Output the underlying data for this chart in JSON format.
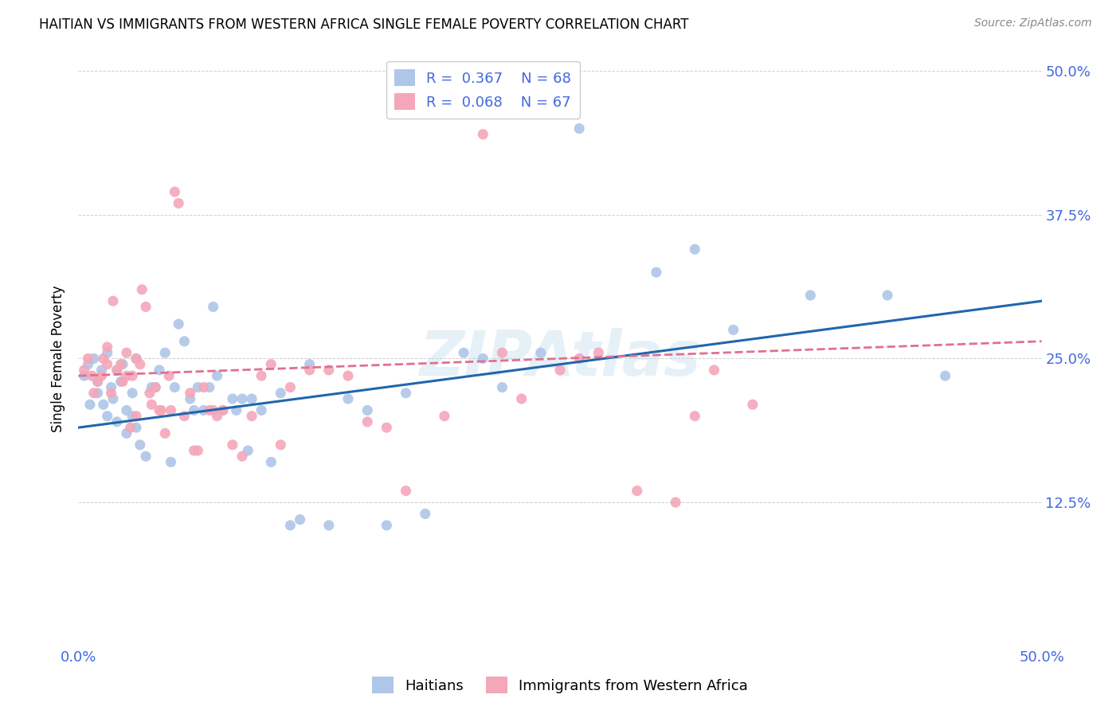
{
  "title": "HAITIAN VS IMMIGRANTS FROM WESTERN AFRICA SINGLE FEMALE POVERTY CORRELATION CHART",
  "source": "Source: ZipAtlas.com",
  "ylabel": "Single Female Poverty",
  "xlim": [
    0,
    0.5
  ],
  "ylim": [
    0,
    0.5
  ],
  "legend_label1": "Haitians",
  "legend_label2": "Immigrants from Western Africa",
  "color_blue": "#aec6e8",
  "color_pink": "#f4a7b9",
  "line_blue": "#2166ac",
  "line_pink": "#e07090",
  "watermark": "ZIPAtlas",
  "title_fontsize": 12,
  "axis_color": "#4169e1",
  "blue_scatter_x": [
    0.003,
    0.005,
    0.006,
    0.008,
    0.01,
    0.01,
    0.012,
    0.013,
    0.015,
    0.015,
    0.017,
    0.018,
    0.02,
    0.02,
    0.022,
    0.023,
    0.025,
    0.025,
    0.028,
    0.028,
    0.03,
    0.03,
    0.032,
    0.035,
    0.038,
    0.04,
    0.042,
    0.045,
    0.048,
    0.05,
    0.052,
    0.055,
    0.058,
    0.06,
    0.062,
    0.065,
    0.068,
    0.07,
    0.072,
    0.075,
    0.08,
    0.082,
    0.085,
    0.088,
    0.09,
    0.095,
    0.1,
    0.105,
    0.11,
    0.115,
    0.12,
    0.13,
    0.14,
    0.15,
    0.16,
    0.17,
    0.18,
    0.2,
    0.21,
    0.22,
    0.24,
    0.26,
    0.3,
    0.32,
    0.34,
    0.38,
    0.42,
    0.45
  ],
  "blue_scatter_y": [
    0.235,
    0.245,
    0.21,
    0.25,
    0.22,
    0.23,
    0.24,
    0.21,
    0.255,
    0.2,
    0.225,
    0.215,
    0.195,
    0.24,
    0.23,
    0.245,
    0.185,
    0.205,
    0.22,
    0.2,
    0.19,
    0.25,
    0.175,
    0.165,
    0.225,
    0.225,
    0.24,
    0.255,
    0.16,
    0.225,
    0.28,
    0.265,
    0.215,
    0.205,
    0.225,
    0.205,
    0.225,
    0.295,
    0.235,
    0.205,
    0.215,
    0.205,
    0.215,
    0.17,
    0.215,
    0.205,
    0.16,
    0.22,
    0.105,
    0.11,
    0.245,
    0.105,
    0.215,
    0.205,
    0.105,
    0.22,
    0.115,
    0.255,
    0.25,
    0.225,
    0.255,
    0.45,
    0.325,
    0.345,
    0.275,
    0.305,
    0.305,
    0.235
  ],
  "pink_scatter_x": [
    0.003,
    0.005,
    0.007,
    0.008,
    0.01,
    0.012,
    0.013,
    0.015,
    0.015,
    0.017,
    0.018,
    0.02,
    0.022,
    0.023,
    0.025,
    0.025,
    0.027,
    0.028,
    0.03,
    0.03,
    0.032,
    0.033,
    0.035,
    0.037,
    0.038,
    0.04,
    0.042,
    0.043,
    0.045,
    0.047,
    0.048,
    0.05,
    0.052,
    0.055,
    0.058,
    0.06,
    0.062,
    0.065,
    0.068,
    0.07,
    0.072,
    0.075,
    0.08,
    0.085,
    0.09,
    0.095,
    0.1,
    0.105,
    0.11,
    0.12,
    0.13,
    0.14,
    0.15,
    0.16,
    0.17,
    0.19,
    0.21,
    0.22,
    0.23,
    0.25,
    0.26,
    0.27,
    0.29,
    0.31,
    0.32,
    0.33,
    0.35
  ],
  "pink_scatter_y": [
    0.24,
    0.25,
    0.235,
    0.22,
    0.23,
    0.235,
    0.25,
    0.245,
    0.26,
    0.22,
    0.3,
    0.24,
    0.245,
    0.23,
    0.235,
    0.255,
    0.19,
    0.235,
    0.25,
    0.2,
    0.245,
    0.31,
    0.295,
    0.22,
    0.21,
    0.225,
    0.205,
    0.205,
    0.185,
    0.235,
    0.205,
    0.395,
    0.385,
    0.2,
    0.22,
    0.17,
    0.17,
    0.225,
    0.205,
    0.205,
    0.2,
    0.205,
    0.175,
    0.165,
    0.2,
    0.235,
    0.245,
    0.175,
    0.225,
    0.24,
    0.24,
    0.235,
    0.195,
    0.19,
    0.135,
    0.2,
    0.445,
    0.255,
    0.215,
    0.24,
    0.25,
    0.255,
    0.135,
    0.125,
    0.2,
    0.24,
    0.21
  ]
}
